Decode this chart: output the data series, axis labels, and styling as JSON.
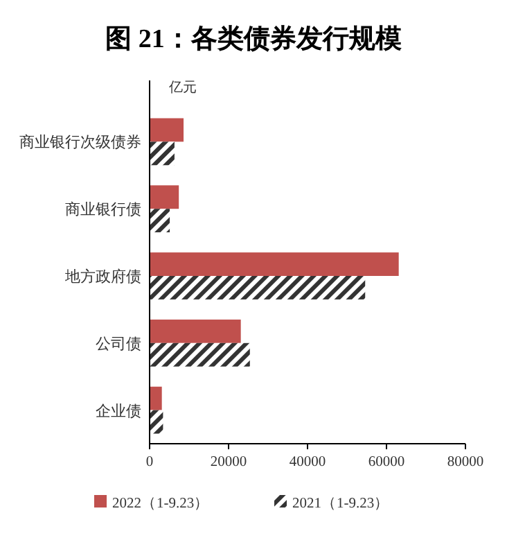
{
  "chart_data": {
    "type": "bar",
    "orientation": "horizontal",
    "title": "图 21：各类债券发行规模",
    "xlabel": "亿元",
    "categories": [
      "商业银行次级债券",
      "商业银行债",
      "地方政府债",
      "公司债",
      "企业债"
    ],
    "series": [
      {
        "name": "2022（1-9.23）",
        "color": "#c0504d",
        "values": [
          8600,
          7400,
          63100,
          23100,
          3100
        ]
      },
      {
        "name": "2021（1-9.23）",
        "color": "#333333",
        "values": [
          6300,
          5100,
          54600,
          25400,
          3400
        ]
      }
    ],
    "xlim": [
      0,
      80000
    ],
    "xticks": [
      0,
      20000,
      40000,
      60000,
      80000
    ],
    "grid": false,
    "legend": "bottom"
  }
}
